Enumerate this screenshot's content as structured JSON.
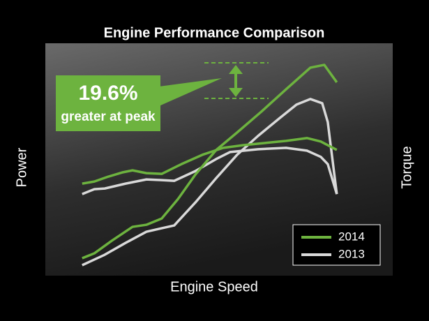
{
  "chart_data": {
    "type": "line",
    "title": "Engine Performance Comparison",
    "x_label": "Engine Speed",
    "y_label": "Power",
    "y2_label": "Torque",
    "xlim": [
      0,
      100
    ],
    "ylim": [
      0,
      100
    ],
    "annotation": {
      "value": {
        "value": 19.6,
        "label": "19.6%"
      },
      "text": "greater at peak"
    },
    "legend": "bottom-right",
    "series": [
      {
        "name": "2014",
        "color": "#6db33f",
        "lines": [
          {
            "x": [
              10.6,
              14.1,
              19.1,
              25.1,
              29.1,
              33.5,
              38.2,
              43.2,
              49.2,
              55.2,
              62.2,
              69.3,
              76.3,
              80.3,
              83.9
            ],
            "values": [
              7.5,
              9.6,
              15.0,
              21.0,
              21.9,
              24.6,
              33.0,
              43.5,
              54.1,
              61.6,
              70.6,
              80.2,
              89.5,
              90.7,
              83.2
            ]
          },
          {
            "x": [
              10.6,
              14.1,
              18.1,
              22.1,
              25.1,
              29.1,
              33.5,
              39.2,
              45.2,
              51.2,
              57.2,
              63.3,
              69.3,
              75.3,
              79.3,
              83.9
            ],
            "values": [
              39.6,
              40.5,
              42.6,
              44.4,
              45.3,
              44.1,
              43.8,
              48.0,
              52.0,
              55.0,
              56.2,
              57.1,
              58.0,
              59.2,
              57.7,
              54.1
            ]
          }
        ]
      },
      {
        "name": "2013",
        "color": "#d9d9d9",
        "lines": [
          {
            "x": [
              10.6,
              17.1,
              23.1,
              29.1,
              33.5,
              37.1,
              43.2,
              49.2,
              55.2,
              61.2,
              67.3,
              72.3,
              76.3,
              79.7,
              81.3,
              83.9
            ],
            "values": [
              4.5,
              9.0,
              14.1,
              18.9,
              20.4,
              21.6,
              31.5,
              42.0,
              52.0,
              60.1,
              67.6,
              73.6,
              76.0,
              74.2,
              66.1,
              35.1
            ]
          },
          {
            "x": [
              10.6,
              14.1,
              17.1,
              23.1,
              29.1,
              33.5,
              37.1,
              43.2,
              49.2,
              53.2,
              61.2,
              69.3,
              75.3,
              79.3,
              81.3,
              83.9
            ],
            "values": [
              35.1,
              37.2,
              37.5,
              39.6,
              41.4,
              41.1,
              40.8,
              45.0,
              50.2,
              53.2,
              54.4,
              55.0,
              53.8,
              51.1,
              48.0,
              35.1
            ]
          }
        ]
      }
    ]
  }
}
